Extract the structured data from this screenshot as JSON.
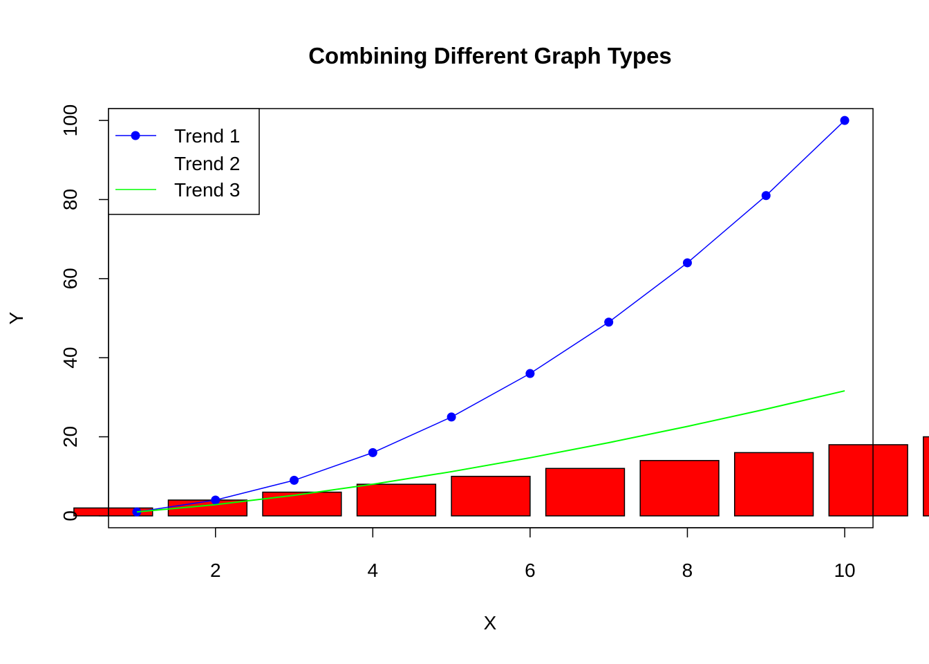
{
  "chart_data": {
    "type": "line",
    "title": "Combining Different Graph Types",
    "xlabel": "X",
    "ylabel": "Y",
    "xlim": [
      0.64,
      10.36
    ],
    "ylim": [
      -3,
      103
    ],
    "x_ticks": [
      2,
      4,
      6,
      8,
      10
    ],
    "y_ticks": [
      0,
      20,
      40,
      60,
      80,
      100
    ],
    "x": [
      1,
      2,
      3,
      4,
      5,
      6,
      7,
      8,
      9,
      10
    ],
    "series": [
      {
        "name": "Trend 1",
        "kind": "line+points",
        "color": "#0000ff",
        "values": [
          1,
          4,
          9,
          16,
          25,
          36,
          49,
          64,
          81,
          100
        ]
      },
      {
        "name": "Trend 2",
        "kind": "bar",
        "color": "#ff0000",
        "values": [
          2,
          4,
          6,
          8,
          10,
          12,
          14,
          16,
          18,
          20
        ]
      },
      {
        "name": "Trend 3",
        "kind": "line",
        "color": "#00ff00",
        "values": [
          1,
          2.83,
          5.2,
          8,
          11.18,
          14.7,
          18.52,
          22.63,
          27,
          31.62
        ]
      }
    ],
    "legend": {
      "position": "top-left",
      "entries": [
        "Trend 1",
        "Trend 2",
        "Trend 3"
      ]
    },
    "grid": false
  }
}
